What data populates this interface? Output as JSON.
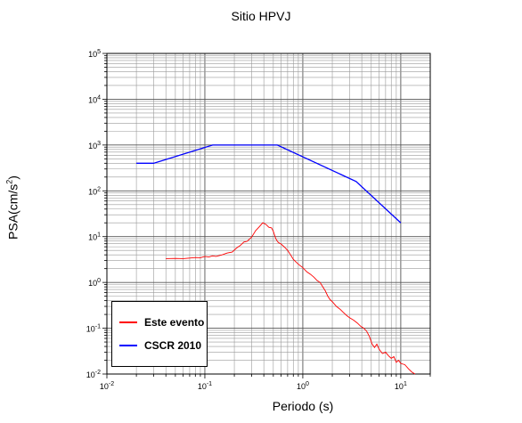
{
  "chart_data": {
    "type": "line",
    "title": "Sitio HPVJ",
    "xlabel": "Periodo (s)",
    "ylabel_base": "PSA(cm/s",
    "ylabel_sup": "2",
    "ylabel_end": ")",
    "xscale": "log",
    "yscale": "log",
    "xlim": [
      0.01,
      20
    ],
    "ylim": [
      0.01,
      100000
    ],
    "grid": true,
    "legend_placement": "bottom-left",
    "x_ticks": [
      {
        "base": "10",
        "exp": "-2"
      },
      {
        "base": "10",
        "exp": "-1"
      },
      {
        "base": "10",
        "exp": "0"
      },
      {
        "base": "10",
        "exp": "1"
      }
    ],
    "y_ticks": [
      {
        "base": "10",
        "exp": "-2"
      },
      {
        "base": "10",
        "exp": "-1"
      },
      {
        "base": "10",
        "exp": "0"
      },
      {
        "base": "10",
        "exp": "1"
      },
      {
        "base": "10",
        "exp": "2"
      },
      {
        "base": "10",
        "exp": "3"
      },
      {
        "base": "10",
        "exp": "4"
      },
      {
        "base": "10",
        "exp": "5"
      }
    ],
    "series": [
      {
        "name": "Este evento",
        "color": "#ff0000",
        "points": [
          [
            0.04,
            3.3
          ],
          [
            0.05,
            3.35
          ],
          [
            0.06,
            3.3
          ],
          [
            0.07,
            3.4
          ],
          [
            0.08,
            3.5
          ],
          [
            0.09,
            3.45
          ],
          [
            0.1,
            3.7
          ],
          [
            0.11,
            3.6
          ],
          [
            0.12,
            3.8
          ],
          [
            0.13,
            3.7
          ],
          [
            0.15,
            4.0
          ],
          [
            0.17,
            4.4
          ],
          [
            0.19,
            4.6
          ],
          [
            0.21,
            5.6
          ],
          [
            0.23,
            6.4
          ],
          [
            0.25,
            7.6
          ],
          [
            0.27,
            7.9
          ],
          [
            0.3,
            9.7
          ],
          [
            0.33,
            13.5
          ],
          [
            0.36,
            16.5
          ],
          [
            0.39,
            20.0
          ],
          [
            0.42,
            18.5
          ],
          [
            0.45,
            16.0
          ],
          [
            0.48,
            15.5
          ],
          [
            0.5,
            13.0
          ],
          [
            0.53,
            9.0
          ],
          [
            0.56,
            7.5
          ],
          [
            0.6,
            6.9
          ],
          [
            0.65,
            5.9
          ],
          [
            0.7,
            5.0
          ],
          [
            0.75,
            4.0
          ],
          [
            0.8,
            3.2
          ],
          [
            0.9,
            2.5
          ],
          [
            1.0,
            2.1
          ],
          [
            1.1,
            1.7
          ],
          [
            1.2,
            1.5
          ],
          [
            1.3,
            1.3
          ],
          [
            1.4,
            1.1
          ],
          [
            1.5,
            1.0
          ],
          [
            1.6,
            0.8
          ],
          [
            1.7,
            0.65
          ],
          [
            1.8,
            0.5
          ],
          [
            1.9,
            0.42
          ],
          [
            2.0,
            0.38
          ],
          [
            2.2,
            0.3
          ],
          [
            2.4,
            0.26
          ],
          [
            2.6,
            0.22
          ],
          [
            2.8,
            0.19
          ],
          [
            3.0,
            0.17
          ],
          [
            3.3,
            0.15
          ],
          [
            3.6,
            0.13
          ],
          [
            3.9,
            0.11
          ],
          [
            4.2,
            0.1
          ],
          [
            4.5,
            0.085
          ],
          [
            4.8,
            0.065
          ],
          [
            5.1,
            0.045
          ],
          [
            5.4,
            0.038
          ],
          [
            5.7,
            0.045
          ],
          [
            6.0,
            0.035
          ],
          [
            6.5,
            0.028
          ],
          [
            7.0,
            0.03
          ],
          [
            7.5,
            0.025
          ],
          [
            8.0,
            0.022
          ],
          [
            8.5,
            0.024
          ],
          [
            9.0,
            0.018
          ],
          [
            9.5,
            0.02
          ],
          [
            10.0,
            0.017
          ],
          [
            11.0,
            0.016
          ],
          [
            12.0,
            0.013
          ],
          [
            13.0,
            0.011
          ],
          [
            14.0,
            0.01
          ]
        ]
      },
      {
        "name": "CSCR 2010",
        "color": "#0000ff",
        "points": [
          [
            0.02,
            400
          ],
          [
            0.03,
            400
          ],
          [
            0.12,
            1000
          ],
          [
            0.55,
            1000
          ],
          [
            3.5,
            160
          ],
          [
            10.0,
            20
          ]
        ]
      }
    ]
  }
}
